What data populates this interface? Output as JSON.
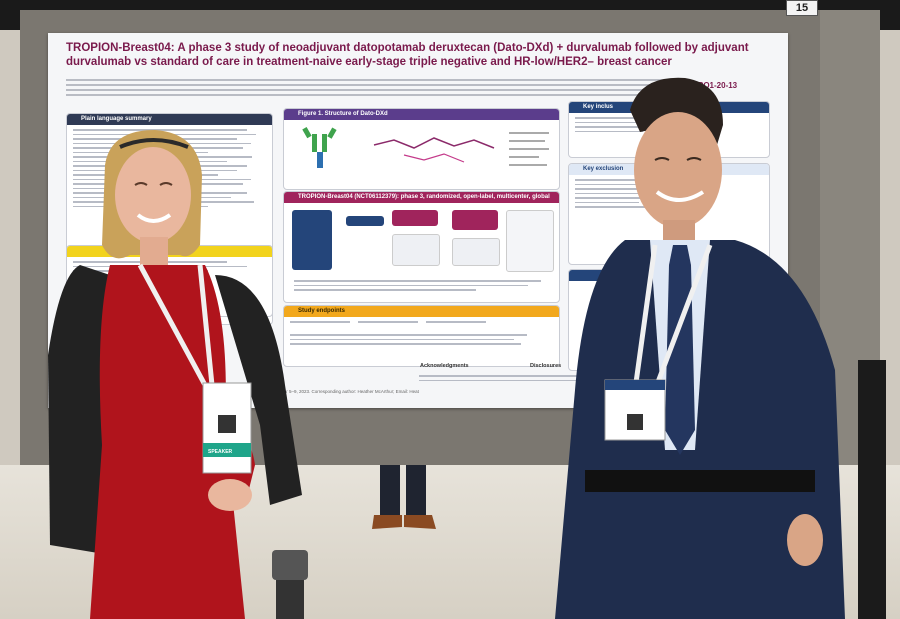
{
  "board_number": "15",
  "poster": {
    "title": "TROPION-Breast04: A phase 3 study of neoadjuvant datopotamab deruxtecan (Dato-DXd) + durvalumab followed by adjuvant durvalumab vs standard of care in treatment-naive early-stage triple negative and HR-low/HER2– breast cancer",
    "code": "PO1-20-13",
    "sections": {
      "plain_language": "Plain language summary",
      "figure1": "Figure 1. Structure of Dato-DXd",
      "design": "TROPION-Breast04 (NCT06112379): phase 3, randomized, open-label, multicenter, global study",
      "endpoints": "Study endpoints",
      "key_inclusion": "Key inclus",
      "key_exclusion": "Key exclusion",
      "acknowledgments": "Acknowledgments",
      "disclosures": "Disclosures"
    },
    "footer": "San Antonio Breast Cancer Symposium (SABCS) 2023, San Antonio, TX, USA, December 5–9, 2023. Corresponding author: Heather McArthur; Email: Heat"
  },
  "badges": {
    "left": "SPEAKER"
  },
  "colors": {
    "poster_title": "#7a1a4c",
    "dress_red": "#b0141c",
    "suit_navy": "#1f2d4d"
  }
}
